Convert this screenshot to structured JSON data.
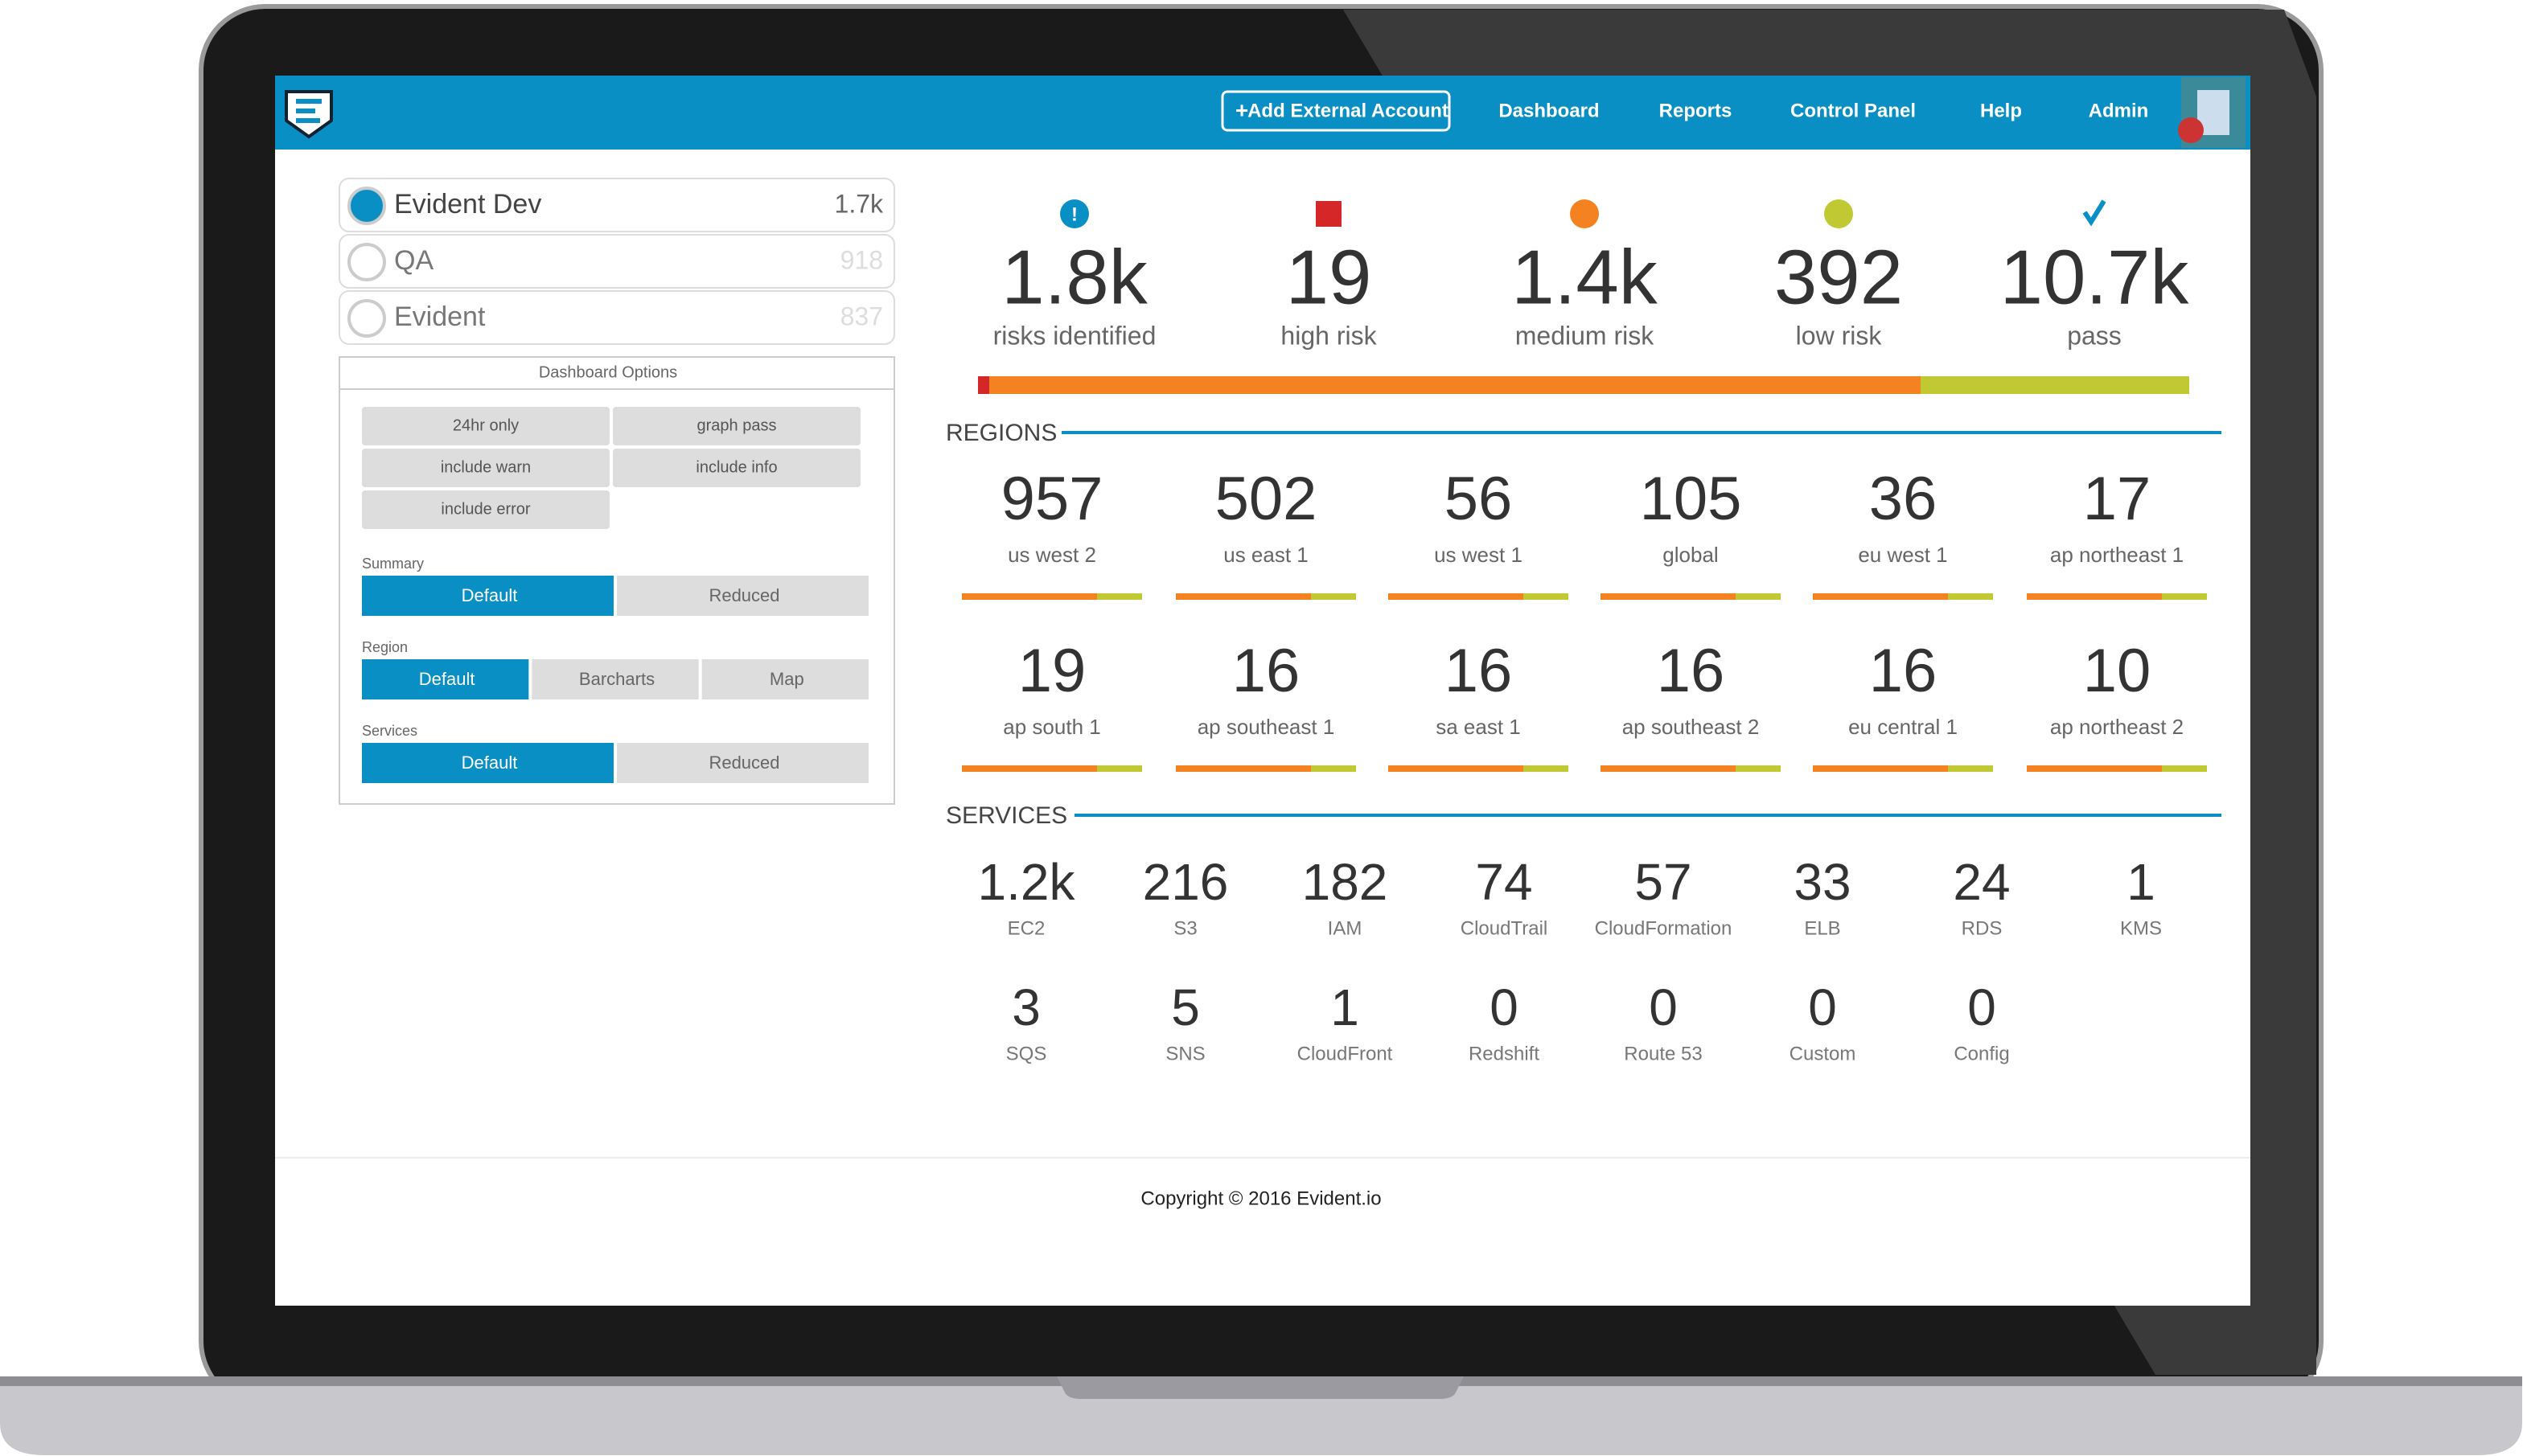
{
  "nav": {
    "add_account": "Add External Account",
    "items": [
      "Dashboard",
      "Reports",
      "Control Panel",
      "Help",
      "Admin"
    ]
  },
  "accounts": [
    {
      "name": "Evident Dev",
      "count": "1.7k"
    },
    {
      "name": "QA",
      "count": 918
    },
    {
      "name": "Evident",
      "count": 837
    }
  ],
  "options": {
    "title": "Dashboard Options",
    "toggles": [
      "24hr only",
      "graph pass",
      "include warn",
      "include info",
      "include error"
    ],
    "groups": [
      {
        "label": "Summary",
        "buttons": [
          "Default",
          "Reduced"
        ]
      },
      {
        "label": "Region",
        "buttons": [
          "Default",
          "Barcharts",
          "Map"
        ]
      },
      {
        "label": "Services",
        "buttons": [
          "Default",
          "Reduced"
        ]
      }
    ]
  },
  "summary": [
    {
      "value": "1.8k",
      "label": "risks identified"
    },
    {
      "value": 19,
      "label": "high risk"
    },
    {
      "value": "1.4k",
      "label": "medium risk"
    },
    {
      "value": 392,
      "label": "low risk"
    },
    {
      "value": "10.7k",
      "label": "pass"
    }
  ],
  "regions": {
    "title": "REGIONS",
    "items": [
      {
        "value": 957,
        "label": "us west 2"
      },
      {
        "value": 502,
        "label": "us east 1"
      },
      {
        "value": 56,
        "label": "us west 1"
      },
      {
        "value": 105,
        "label": "global"
      },
      {
        "value": 36,
        "label": "eu west 1"
      },
      {
        "value": 17,
        "label": "ap northeast 1"
      },
      {
        "value": 19,
        "label": "ap south 1"
      },
      {
        "value": 16,
        "label": "ap southeast 1"
      },
      {
        "value": 16,
        "label": "sa east 1"
      },
      {
        "value": 16,
        "label": "ap southeast 2"
      },
      {
        "value": 16,
        "label": "eu central 1"
      },
      {
        "value": 10,
        "label": "ap northeast 2"
      }
    ]
  },
  "services": {
    "title": "SERVICES",
    "items": [
      {
        "value": "1.2k",
        "label": "EC2"
      },
      {
        "value": 216,
        "label": "S3"
      },
      {
        "value": 182,
        "label": "IAM"
      },
      {
        "value": 74,
        "label": "CloudTrail"
      },
      {
        "value": 57,
        "label": "CloudFormation"
      },
      {
        "value": 33,
        "label": "ELB"
      },
      {
        "value": 24,
        "label": "RDS"
      },
      {
        "value": 1,
        "label": "KMS"
      },
      {
        "value": 3,
        "label": "SQS"
      },
      {
        "value": 5,
        "label": "SNS"
      },
      {
        "value": 1,
        "label": "CloudFront"
      },
      {
        "value": 0,
        "label": "Redshift"
      },
      {
        "value": 0,
        "label": "Route 53"
      },
      {
        "value": 0,
        "label": "Custom"
      },
      {
        "value": 0,
        "label": "Config"
      }
    ]
  },
  "footer": "Copyright © 2016 Evident.io"
}
